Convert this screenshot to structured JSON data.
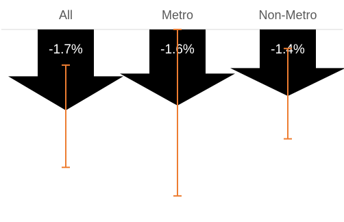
{
  "chart_data": {
    "type": "bar",
    "title": "",
    "categories": [
      "All",
      "Metro",
      "Non-Metro"
    ],
    "values": [
      -1.7,
      -1.6,
      -1.4
    ],
    "value_labels": [
      "-1.7%",
      "-1.6%",
      "-1.4%"
    ],
    "error_bars": {
      "lower": [
        -2.9,
        -3.5,
        -2.3
      ],
      "upper": [
        -0.75,
        -0.0,
        -0.4
      ]
    },
    "ylim": [
      -3.6,
      0
    ],
    "xlabel": "",
    "ylabel": "",
    "grid": false,
    "legend": "none",
    "colors": {
      "bar": "#000000",
      "error_bar": "#ED7D31",
      "axis": "#D9D9D9",
      "category_text": "#595959",
      "value_text": "#FFFFFF"
    }
  }
}
